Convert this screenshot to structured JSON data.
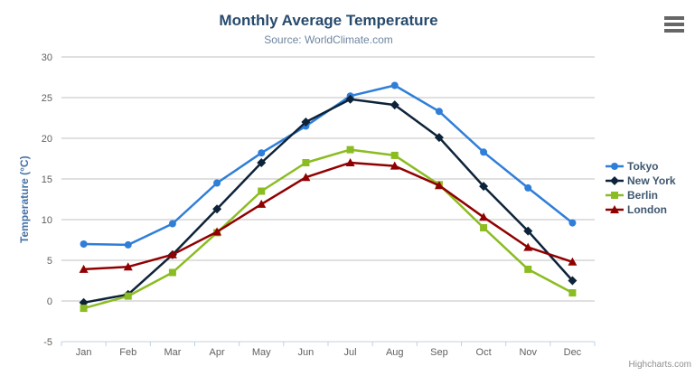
{
  "header": {
    "title": "Monthly Average Temperature",
    "subtitle": "Source: WorldClimate.com"
  },
  "credits": {
    "label": "Highcharts.com"
  },
  "context_menu": {
    "icon": "hamburger-icon"
  },
  "colors": {
    "title": "#274b6d",
    "subtitle": "#6d869f",
    "y_axis_title": "#4572a7",
    "axis_label": "#606060",
    "grid_line": "#c0c0c0",
    "axis_line": "#c0d0e0",
    "legend_text": "#3e576f",
    "credit_text": "#909090",
    "menu_icon": "#666666"
  },
  "chart_data": {
    "type": "line",
    "title": "Monthly Average Temperature",
    "subtitle": "Source: WorldClimate.com",
    "xlabel": "",
    "ylabel": "Temperature (°C)",
    "ylim": [
      -5,
      30
    ],
    "ytick_step": 5,
    "yticks": [
      -5,
      0,
      5,
      10,
      15,
      20,
      25,
      30
    ],
    "grid": true,
    "legend_position": "right",
    "categories": [
      "Jan",
      "Feb",
      "Mar",
      "Apr",
      "May",
      "Jun",
      "Jul",
      "Aug",
      "Sep",
      "Oct",
      "Nov",
      "Dec"
    ],
    "series": [
      {
        "name": "Tokyo",
        "color": "#2f7ed8",
        "marker": "circle",
        "values": [
          7.0,
          6.9,
          9.5,
          14.5,
          18.2,
          21.5,
          25.2,
          26.5,
          23.3,
          18.3,
          13.9,
          9.6
        ]
      },
      {
        "name": "New York",
        "color": "#0d233a",
        "marker": "diamond",
        "values": [
          -0.2,
          0.8,
          5.7,
          11.3,
          17.0,
          22.0,
          24.8,
          24.1,
          20.1,
          14.1,
          8.6,
          2.5
        ]
      },
      {
        "name": "Berlin",
        "color": "#8bbc21",
        "marker": "square",
        "values": [
          -0.9,
          0.6,
          3.5,
          8.4,
          13.5,
          17.0,
          18.6,
          17.9,
          14.3,
          9.0,
          3.9,
          1.0
        ]
      },
      {
        "name": "London",
        "color": "#910000",
        "marker": "triangle",
        "values": [
          3.9,
          4.2,
          5.7,
          8.5,
          11.9,
          15.2,
          17.0,
          16.6,
          14.2,
          10.3,
          6.6,
          4.8
        ]
      }
    ]
  }
}
